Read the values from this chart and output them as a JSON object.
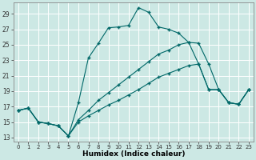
{
  "title": "",
  "xlabel": "Humidex (Indice chaleur)",
  "ylabel": "",
  "background_color": "#cce8e4",
  "grid_color": "#ffffff",
  "line_color": "#006868",
  "xlim": [
    -0.5,
    23.5
  ],
  "ylim": [
    12.5,
    30.5
  ],
  "xticks": [
    0,
    1,
    2,
    3,
    4,
    5,
    6,
    7,
    8,
    9,
    10,
    11,
    12,
    13,
    14,
    15,
    16,
    17,
    18,
    19,
    20,
    21,
    22,
    23
  ],
  "yticks": [
    13,
    15,
    17,
    19,
    21,
    23,
    25,
    27,
    29
  ],
  "series": [
    {
      "x": [
        0,
        1,
        2,
        3,
        4,
        5,
        6,
        7,
        8,
        9,
        10,
        11,
        12,
        13,
        14,
        15,
        16,
        17,
        18,
        19,
        20,
        21,
        22,
        23
      ],
      "y": [
        16.5,
        16.8,
        15.0,
        14.8,
        14.5,
        13.2,
        17.5,
        23.3,
        25.2,
        27.2,
        27.3,
        27.5,
        29.8,
        29.2,
        27.3,
        27.0,
        26.5,
        25.3,
        25.2,
        22.5,
        19.2,
        17.5,
        17.3,
        19.2
      ]
    },
    {
      "x": [
        0,
        1,
        2,
        3,
        4,
        5,
        6,
        7,
        8,
        9,
        10,
        11,
        12,
        13,
        14,
        15,
        16,
        17,
        18,
        19,
        20,
        21,
        22,
        23
      ],
      "y": [
        16.5,
        16.8,
        15.0,
        14.8,
        14.5,
        13.2,
        15.3,
        16.5,
        17.8,
        18.8,
        19.8,
        20.8,
        21.8,
        22.8,
        23.8,
        24.3,
        25.0,
        25.3,
        22.5,
        19.2,
        19.2,
        17.5,
        17.3,
        19.2
      ]
    },
    {
      "x": [
        0,
        1,
        2,
        3,
        4,
        5,
        6,
        7,
        8,
        9,
        10,
        11,
        12,
        13,
        14,
        15,
        16,
        17,
        18,
        19,
        20,
        21,
        22,
        23
      ],
      "y": [
        16.5,
        16.8,
        15.0,
        14.8,
        14.5,
        13.2,
        15.0,
        15.8,
        16.5,
        17.2,
        17.8,
        18.5,
        19.2,
        20.0,
        20.8,
        21.3,
        21.8,
        22.3,
        22.5,
        19.2,
        19.2,
        17.5,
        17.3,
        19.2
      ]
    }
  ]
}
